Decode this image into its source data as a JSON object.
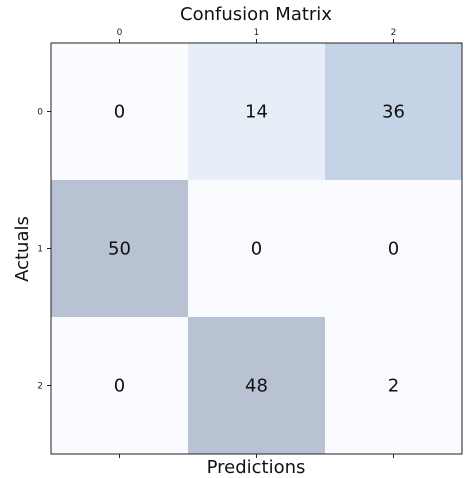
{
  "chart_data": {
    "type": "heatmap",
    "title": "Confusion Matrix",
    "xlabel": "Predictions",
    "ylabel": "Actuals",
    "x_categories": [
      "0",
      "1",
      "2"
    ],
    "y_categories": [
      "0",
      "1",
      "2"
    ],
    "x_ticks_position": "top",
    "values": [
      [
        0,
        14,
        36
      ],
      [
        50,
        0,
        0
      ],
      [
        0,
        48,
        2
      ]
    ],
    "colors": {
      "0-0": "#fafbfe",
      "0-1": "#e8eef7",
      "0-2": "#c4d3e5",
      "1-0": "#b8c2d2",
      "1-1": "#fafbfe",
      "1-2": "#fafbfe",
      "2-0": "#fafbfe",
      "2-1": "#b8c2d2",
      "2-2": "#fafbfe"
    },
    "grid": false,
    "legend": "none"
  }
}
